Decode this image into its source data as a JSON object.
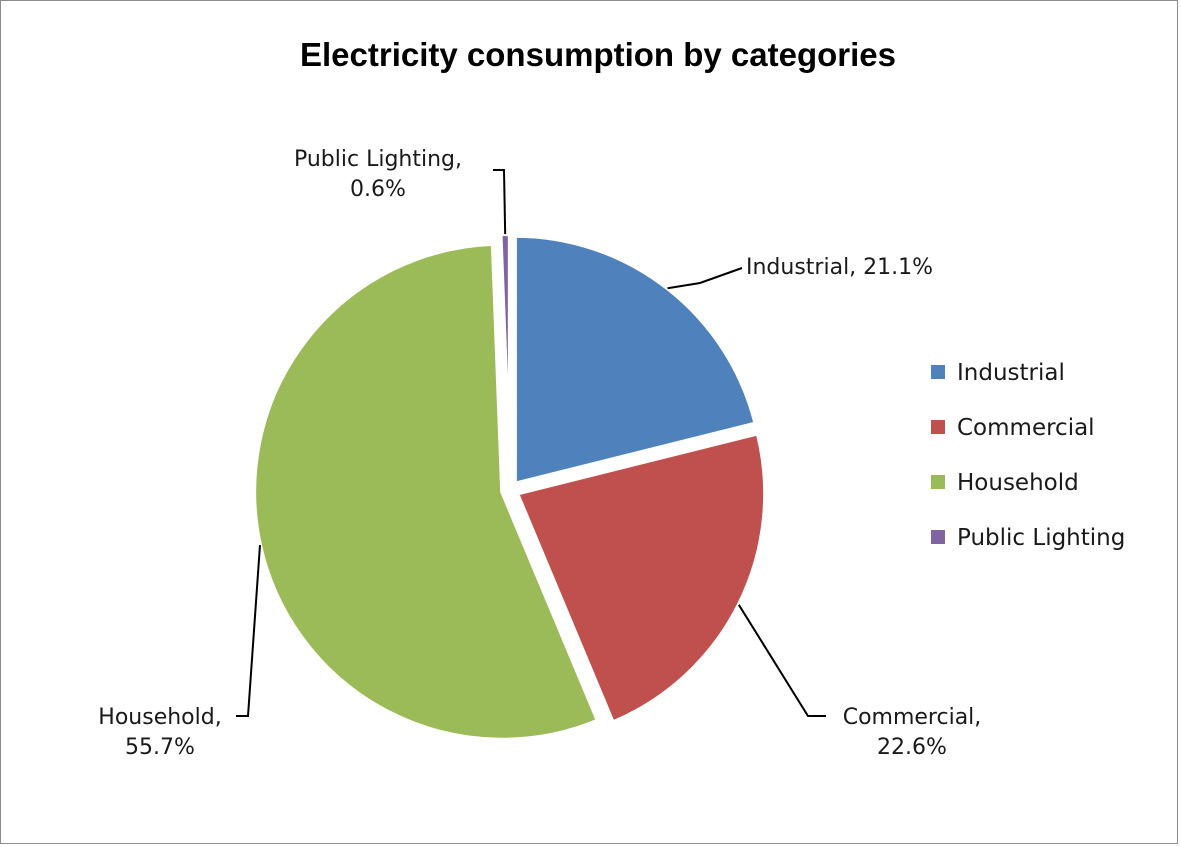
{
  "chart_data": {
    "type": "pie",
    "title": "Electricity consumption by categories",
    "categories": [
      "Industrial",
      "Commercial",
      "Household",
      "Public Lighting"
    ],
    "values": [
      21.1,
      22.6,
      55.7,
      0.6
    ],
    "colors": [
      "#4F81BD",
      "#C0504D",
      "#9BBB59",
      "#8064A2"
    ],
    "data_labels": [
      [
        "Industrial, 21.1%"
      ],
      [
        "Commercial,",
        "22.6%"
      ],
      [
        "Household,",
        "55.7%"
      ],
      [
        "Public Lighting,",
        "0.6%"
      ]
    ],
    "legend": {
      "placement": "right",
      "entries": [
        "Industrial",
        "Commercial",
        "Household",
        "Public Lighting"
      ]
    },
    "exploded": true
  }
}
